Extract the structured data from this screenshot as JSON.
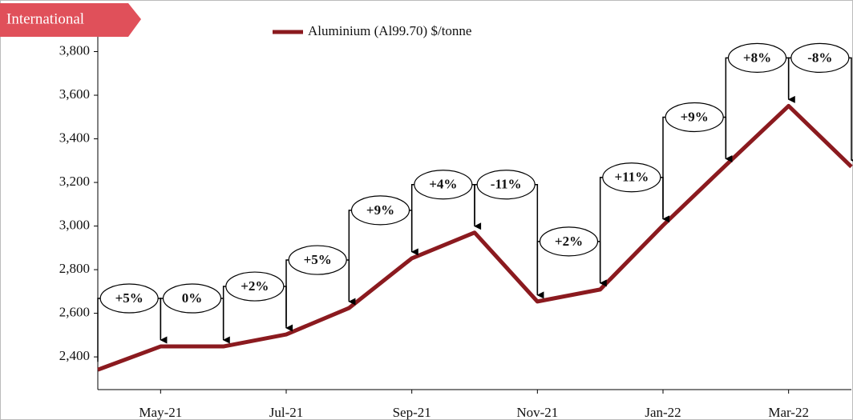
{
  "chart_data": {
    "type": "line",
    "tag": "International",
    "categories": [
      null,
      "May-21",
      null,
      "Jul-21",
      null,
      "Sep-21",
      null,
      "Nov-21",
      null,
      "Jan-22",
      null,
      "Mar-22",
      null
    ],
    "series": [
      {
        "name": "Aluminium (Al99.70) $/tonne",
        "color": "#8b1a1f",
        "values": [
          2341,
          2448,
          2448,
          2503,
          2624,
          2852,
          2970,
          2654,
          2709,
          3003,
          3279,
          3551,
          3272
        ]
      }
    ],
    "annotations": [
      "+5%",
      "0%",
      "+2%",
      "+5%",
      "+9%",
      "+4%",
      "-11%",
      "+2%",
      "+11%",
      "+9%",
      "+8%",
      "-8%"
    ],
    "ylim": [
      2250,
      4000
    ],
    "yticks": [
      {
        "value": 2400,
        "label": "2,400"
      },
      {
        "value": 2600,
        "label": "2,600"
      },
      {
        "value": 2800,
        "label": "2,800"
      },
      {
        "value": 3000,
        "label": "3,000"
      },
      {
        "value": 3200,
        "label": "3,200"
      },
      {
        "value": 3400,
        "label": "3,400"
      },
      {
        "value": 3600,
        "label": "3,600"
      },
      {
        "value": 3800,
        "label": "3,800"
      }
    ]
  }
}
